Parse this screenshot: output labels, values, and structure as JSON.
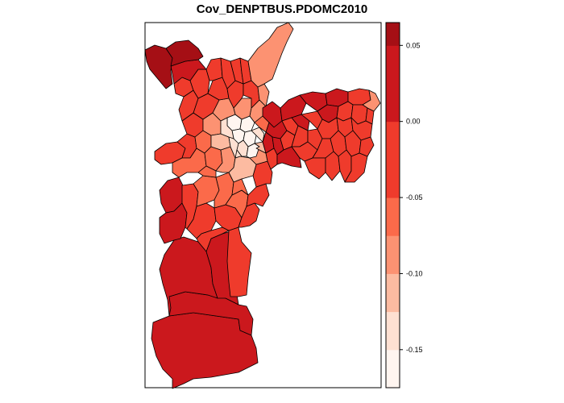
{
  "map": {
    "title": "Cov_DENPTBUS.PDOMC2010"
  },
  "legend": {
    "classes": [
      {
        "from": -0.175,
        "to": -0.15,
        "color": "#fff5f0"
      },
      {
        "from": -0.15,
        "to": -0.125,
        "color": "#fee0d2"
      },
      {
        "from": -0.125,
        "to": -0.1,
        "color": "#fcbba1"
      },
      {
        "from": -0.1,
        "to": -0.075,
        "color": "#fc9272"
      },
      {
        "from": -0.075,
        "to": -0.05,
        "color": "#fb6a4a"
      },
      {
        "from": -0.05,
        "to": -0.025,
        "color": "#ef3b2c"
      },
      {
        "from": -0.025,
        "to": 0.0,
        "color": "#ef3b2c"
      },
      {
        "from": 0.0,
        "to": 0.025,
        "color": "#cb181d"
      },
      {
        "from": 0.025,
        "to": 0.05,
        "color": "#cb181d"
      },
      {
        "from": 0.05,
        "to": 0.065,
        "color": "#a50f15"
      }
    ],
    "ticks": [
      {
        "value": 0.05,
        "label": "0.05"
      },
      {
        "value": 0.0,
        "label": "0.00"
      },
      {
        "value": -0.05,
        "label": "-0.05"
      },
      {
        "value": -0.1,
        "label": "-0.10"
      },
      {
        "value": -0.15,
        "label": "-0.15"
      }
    ],
    "range": [
      -0.175,
      0.065
    ]
  },
  "palette": {
    "dark": "#a50f15",
    "red": "#cb181d",
    "red_mid": "#ef3b2c",
    "salmon": "#fb6a4a",
    "light_salmon": "#fc9272",
    "pink": "#fcbba1",
    "pale": "#fee0d2",
    "white": "#fff5f0"
  }
}
